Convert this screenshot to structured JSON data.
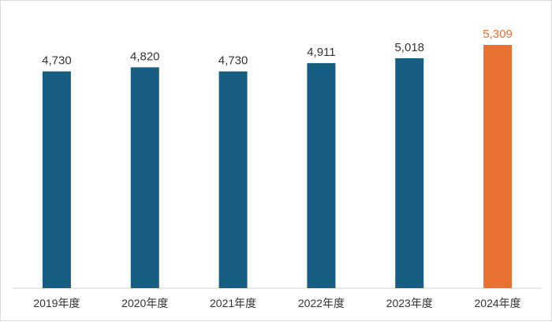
{
  "colors": {
    "bar": "#175f82",
    "highlight": "#e97132",
    "value_label": "#333333",
    "axis": "#d0d0d0"
  },
  "chart_data": {
    "type": "bar",
    "categories": [
      "2019年度",
      "2020年度",
      "2021年度",
      "2022年度",
      "2023年度",
      "2024年度"
    ],
    "values": [
      4730,
      4820,
      4730,
      4911,
      5018,
      5309
    ],
    "value_labels": [
      "4,730",
      "4,820",
      "4,730",
      "4,911",
      "5,018",
      "5,309"
    ],
    "highlight_index": 5,
    "title": "",
    "xlabel": "",
    "ylabel": "",
    "ylim": [
      0,
      5400
    ],
    "grid": false,
    "legend": "none"
  }
}
